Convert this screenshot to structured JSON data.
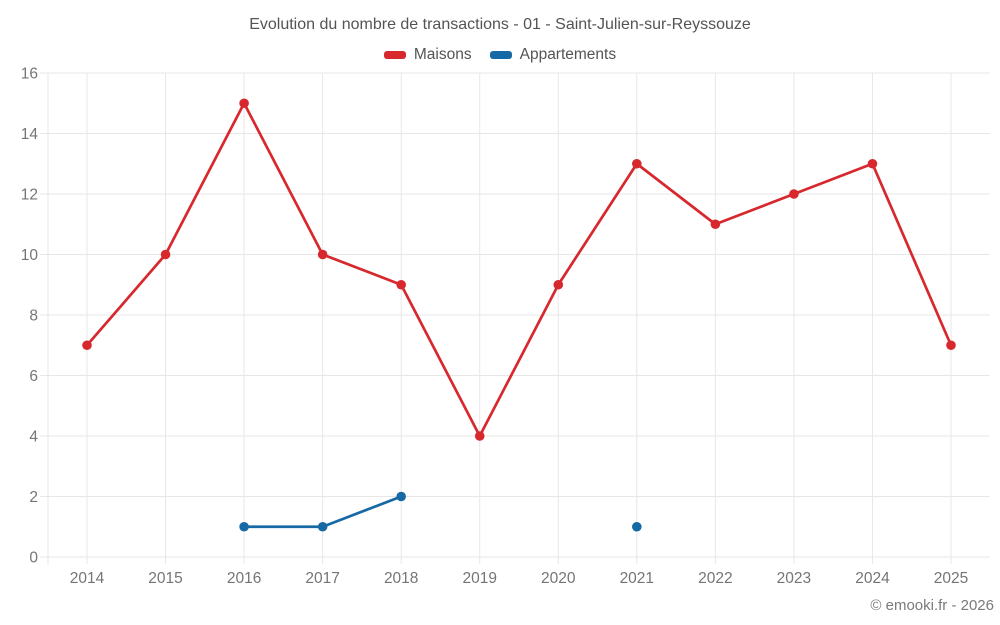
{
  "header": {
    "title": "Evolution du nombre de transactions - 01 - Saint-Julien-sur-Reyssouze"
  },
  "chart_data": {
    "type": "line",
    "title": "Evolution du nombre de transactions - 01 - Saint-Julien-sur-Reyssouze",
    "x": [
      2014,
      2015,
      2016,
      2017,
      2018,
      2019,
      2020,
      2021,
      2022,
      2023,
      2024,
      2025
    ],
    "series": [
      {
        "name": "Maisons",
        "color": "#d7282e",
        "values": [
          7,
          10,
          15,
          10,
          9,
          4,
          9,
          13,
          11,
          12,
          13,
          7
        ]
      },
      {
        "name": "Appartements",
        "color": "#1669a4",
        "values": [
          null,
          null,
          1,
          1,
          2,
          null,
          null,
          1,
          null,
          null,
          null,
          null
        ]
      }
    ],
    "ylim": [
      0,
      16
    ],
    "yticks": [
      0,
      2,
      4,
      6,
      8,
      10,
      12,
      14,
      16
    ],
    "grid": true,
    "legend_position": "top",
    "xlabel": "",
    "ylabel": ""
  },
  "style_colors": {
    "grid": "#e7e7e7",
    "axis_label": "#757575",
    "title_text": "#545454"
  },
  "footer": {
    "copyright": "© emooki.fr - 2026"
  }
}
